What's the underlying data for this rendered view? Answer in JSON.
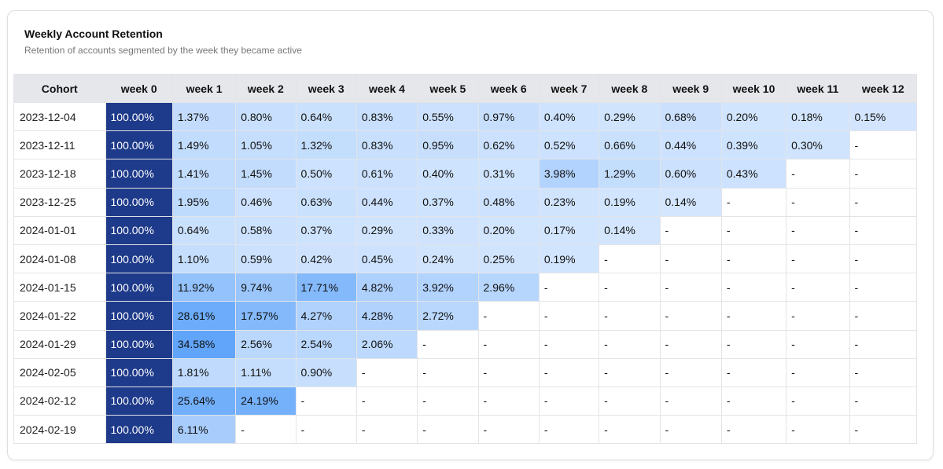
{
  "header": {
    "title": "Weekly Account Retention",
    "subtitle": "Retention of accounts segmented by the week they became active"
  },
  "colors": {
    "week0_bg": "#1e3a8a",
    "scale_light": "#dbeafe",
    "scale_dark": "#60a5fa",
    "empty_bg": "#ffffff"
  },
  "chart_data": {
    "type": "heatmap",
    "columns": [
      "Cohort",
      "week 0",
      "week 1",
      "week 2",
      "week 3",
      "week 4",
      "week 5",
      "week 6",
      "week 7",
      "week 8",
      "week 9",
      "week 10",
      "week 11",
      "week 12"
    ],
    "rows": [
      {
        "cohort": "2023-12-04",
        "values": [
          "100.00%",
          "1.37%",
          "0.80%",
          "0.64%",
          "0.83%",
          "0.55%",
          "0.97%",
          "0.40%",
          "0.29%",
          "0.68%",
          "0.20%",
          "0.18%",
          "0.15%"
        ]
      },
      {
        "cohort": "2023-12-11",
        "values": [
          "100.00%",
          "1.49%",
          "1.05%",
          "1.32%",
          "0.83%",
          "0.95%",
          "0.62%",
          "0.52%",
          "0.66%",
          "0.44%",
          "0.39%",
          "0.30%",
          "-"
        ]
      },
      {
        "cohort": "2023-12-18",
        "values": [
          "100.00%",
          "1.41%",
          "1.45%",
          "0.50%",
          "0.61%",
          "0.40%",
          "0.31%",
          "3.98%",
          "1.29%",
          "0.60%",
          "0.43%",
          "-",
          "-"
        ]
      },
      {
        "cohort": "2023-12-25",
        "values": [
          "100.00%",
          "1.95%",
          "0.46%",
          "0.63%",
          "0.44%",
          "0.37%",
          "0.48%",
          "0.23%",
          "0.19%",
          "0.14%",
          "-",
          "-",
          "-"
        ]
      },
      {
        "cohort": "2024-01-01",
        "values": [
          "100.00%",
          "0.64%",
          "0.58%",
          "0.37%",
          "0.29%",
          "0.33%",
          "0.20%",
          "0.17%",
          "0.14%",
          "-",
          "-",
          "-",
          "-"
        ]
      },
      {
        "cohort": "2024-01-08",
        "values": [
          "100.00%",
          "1.10%",
          "0.59%",
          "0.42%",
          "0.45%",
          "0.24%",
          "0.25%",
          "0.19%",
          "-",
          "-",
          "-",
          "-",
          "-"
        ]
      },
      {
        "cohort": "2024-01-15",
        "values": [
          "100.00%",
          "11.92%",
          "9.74%",
          "17.71%",
          "4.82%",
          "3.92%",
          "2.96%",
          "-",
          "-",
          "-",
          "-",
          "-",
          "-"
        ]
      },
      {
        "cohort": "2024-01-22",
        "values": [
          "100.00%",
          "28.61%",
          "17.57%",
          "4.27%",
          "4.28%",
          "2.72%",
          "-",
          "-",
          "-",
          "-",
          "-",
          "-",
          "-"
        ]
      },
      {
        "cohort": "2024-01-29",
        "values": [
          "100.00%",
          "34.58%",
          "2.56%",
          "2.54%",
          "2.06%",
          "-",
          "-",
          "-",
          "-",
          "-",
          "-",
          "-",
          "-"
        ]
      },
      {
        "cohort": "2024-02-05",
        "values": [
          "100.00%",
          "1.81%",
          "1.11%",
          "0.90%",
          "-",
          "-",
          "-",
          "-",
          "-",
          "-",
          "-",
          "-",
          "-"
        ]
      },
      {
        "cohort": "2024-02-12",
        "values": [
          "100.00%",
          "25.64%",
          "24.19%",
          "-",
          "-",
          "-",
          "-",
          "-",
          "-",
          "-",
          "-",
          "-",
          "-"
        ]
      },
      {
        "cohort": "2024-02-19",
        "values": [
          "100.00%",
          "6.11%",
          "-",
          "-",
          "-",
          "-",
          "-",
          "-",
          "-",
          "-",
          "-",
          "-",
          "-"
        ]
      }
    ]
  }
}
